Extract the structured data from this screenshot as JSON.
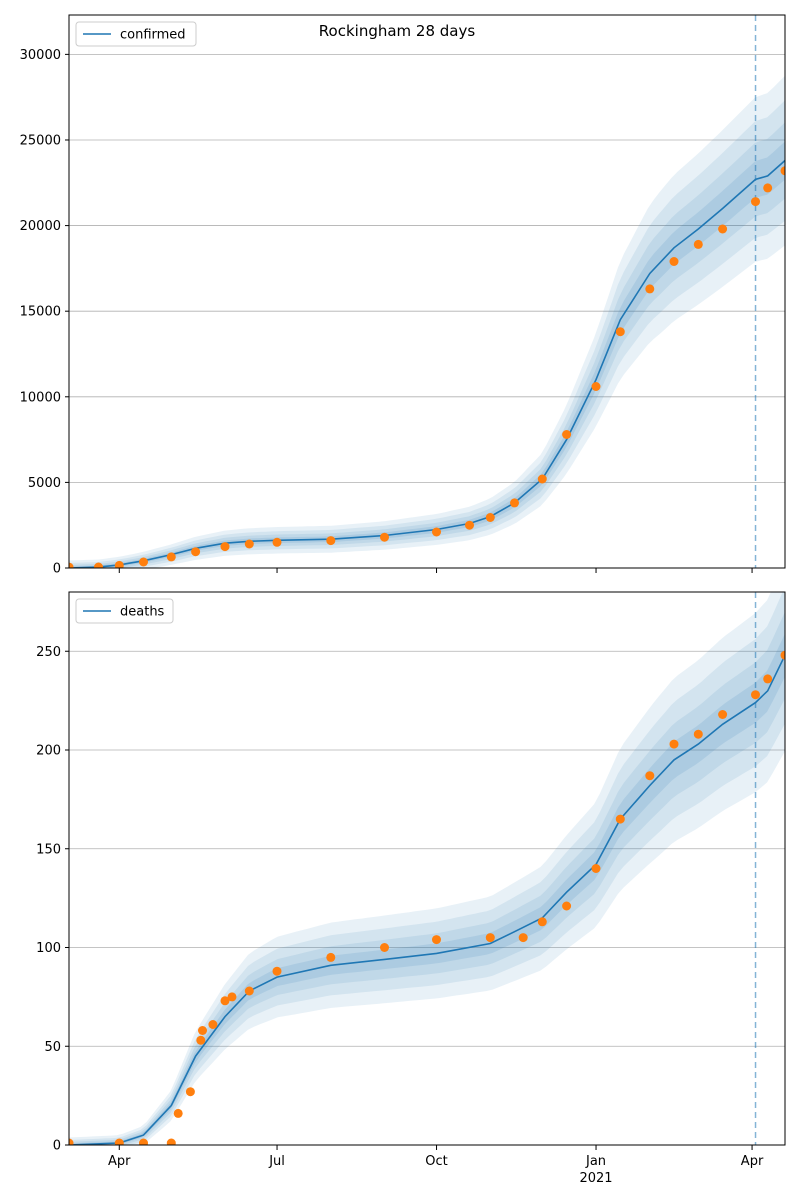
{
  "chart_data": [
    {
      "type": "line",
      "title": "Rockingham 28 days",
      "xlabel": "",
      "ylabel": "",
      "xlim": [
        "2020-03-03",
        "2021-04-20"
      ],
      "ylim": [
        0,
        32300
      ],
      "yticks": [
        0,
        5000,
        10000,
        15000,
        20000,
        25000,
        30000
      ],
      "xticks": [
        {
          "date": "2020-04-01",
          "label": "Apr",
          "sublabel": ""
        },
        {
          "date": "2020-07-01",
          "label": "Jul",
          "sublabel": ""
        },
        {
          "date": "2020-10-01",
          "label": "Oct",
          "sublabel": ""
        },
        {
          "date": "2021-01-01",
          "label": "Jan",
          "sublabel": "2021"
        },
        {
          "date": "2021-04-01",
          "label": "Apr",
          "sublabel": ""
        }
      ],
      "grid": "horizontal",
      "legend_position": "top-left",
      "forecast_start": "2021-04-03",
      "series": [
        {
          "name": "confirmed",
          "kind": "model-line",
          "color": "#1f77b4",
          "points": [
            [
              "2020-03-03",
              0
            ],
            [
              "2020-03-20",
              50
            ],
            [
              "2020-04-01",
              180
            ],
            [
              "2020-04-15",
              420
            ],
            [
              "2020-05-01",
              780
            ],
            [
              "2020-05-15",
              1150
            ],
            [
              "2020-06-01",
              1450
            ],
            [
              "2020-06-15",
              1560
            ],
            [
              "2020-07-01",
              1620
            ],
            [
              "2020-08-01",
              1680
            ],
            [
              "2020-09-01",
              1900
            ],
            [
              "2020-10-01",
              2250
            ],
            [
              "2020-10-20",
              2600
            ],
            [
              "2020-11-01",
              3000
            ],
            [
              "2020-11-15",
              3800
            ],
            [
              "2020-12-01",
              5200
            ],
            [
              "2020-12-15",
              7500
            ],
            [
              "2021-01-01",
              11000
            ],
            [
              "2021-01-15",
              14500
            ],
            [
              "2021-02-01",
              17200
            ],
            [
              "2021-02-15",
              18700
            ],
            [
              "2021-03-01",
              19800
            ],
            [
              "2021-03-15",
              21000
            ],
            [
              "2021-04-03",
              22700
            ],
            [
              "2021-04-10",
              22900
            ],
            [
              "2021-04-20",
              23800
            ]
          ]
        },
        {
          "name": "",
          "kind": "observed-dots",
          "color": "#ff7f0e",
          "points": [
            [
              "2020-03-03",
              50
            ],
            [
              "2020-03-20",
              60
            ],
            [
              "2020-04-01",
              150
            ],
            [
              "2020-04-15",
              350
            ],
            [
              "2020-05-01",
              650
            ],
            [
              "2020-05-15",
              950
            ],
            [
              "2020-06-01",
              1250
            ],
            [
              "2020-06-15",
              1400
            ],
            [
              "2020-07-01",
              1500
            ],
            [
              "2020-08-01",
              1600
            ],
            [
              "2020-09-01",
              1800
            ],
            [
              "2020-10-01",
              2100
            ],
            [
              "2020-10-20",
              2500
            ],
            [
              "2020-11-01",
              2950
            ],
            [
              "2020-11-15",
              3800
            ],
            [
              "2020-12-01",
              5200
            ],
            [
              "2020-12-15",
              7800
            ],
            [
              "2021-01-01",
              10600
            ],
            [
              "2021-01-15",
              13800
            ],
            [
              "2021-02-01",
              16300
            ],
            [
              "2021-02-15",
              17900
            ],
            [
              "2021-03-01",
              18900
            ],
            [
              "2021-03-15",
              19800
            ],
            [
              "2021-04-03",
              21400
            ],
            [
              "2021-04-10",
              22200
            ],
            [
              "2021-04-20",
              23200
            ]
          ]
        }
      ]
    },
    {
      "type": "line",
      "title": "",
      "xlabel": "",
      "ylabel": "",
      "xlim": [
        "2020-03-03",
        "2021-04-20"
      ],
      "ylim": [
        0,
        280
      ],
      "yticks": [
        0,
        50,
        100,
        150,
        200,
        250
      ],
      "xticks": [
        {
          "date": "2020-04-01",
          "label": "Apr",
          "sublabel": ""
        },
        {
          "date": "2020-07-01",
          "label": "Jul",
          "sublabel": ""
        },
        {
          "date": "2020-10-01",
          "label": "Oct",
          "sublabel": ""
        },
        {
          "date": "2021-01-01",
          "label": "Jan",
          "sublabel": "2021"
        },
        {
          "date": "2021-04-01",
          "label": "Apr",
          "sublabel": ""
        }
      ],
      "grid": "horizontal",
      "legend_position": "top-left",
      "forecast_start": "2021-04-03",
      "series": [
        {
          "name": "deaths",
          "kind": "model-line",
          "color": "#1f77b4",
          "points": [
            [
              "2020-03-03",
              0
            ],
            [
              "2020-04-01",
              1
            ],
            [
              "2020-04-15",
              5
            ],
            [
              "2020-05-01",
              20
            ],
            [
              "2020-05-15",
              45
            ],
            [
              "2020-06-01",
              65
            ],
            [
              "2020-06-15",
              78
            ],
            [
              "2020-07-01",
              85
            ],
            [
              "2020-08-01",
              91
            ],
            [
              "2020-09-01",
              94
            ],
            [
              "2020-10-01",
              97
            ],
            [
              "2020-11-01",
              102
            ],
            [
              "2020-11-15",
              108
            ],
            [
              "2020-12-01",
              115
            ],
            [
              "2020-12-15",
              128
            ],
            [
              "2021-01-01",
              142
            ],
            [
              "2021-01-15",
              165
            ],
            [
              "2021-02-01",
              182
            ],
            [
              "2021-02-15",
              195
            ],
            [
              "2021-03-01",
              203
            ],
            [
              "2021-03-15",
              213
            ],
            [
              "2021-04-03",
              224
            ],
            [
              "2021-04-10",
              230
            ],
            [
              "2021-04-20",
              248
            ]
          ]
        },
        {
          "name": "",
          "kind": "observed-dots",
          "color": "#ff7f0e",
          "points": [
            [
              "2020-03-03",
              1
            ],
            [
              "2020-04-01",
              1
            ],
            [
              "2020-04-15",
              1
            ],
            [
              "2020-05-01",
              1
            ],
            [
              "2020-05-05",
              16
            ],
            [
              "2020-05-12",
              27
            ],
            [
              "2020-05-18",
              53
            ],
            [
              "2020-05-19",
              58
            ],
            [
              "2020-05-25",
              61
            ],
            [
              "2020-06-01",
              73
            ],
            [
              "2020-06-05",
              75
            ],
            [
              "2020-06-15",
              78
            ],
            [
              "2020-07-01",
              88
            ],
            [
              "2020-08-01",
              95
            ],
            [
              "2020-09-01",
              100
            ],
            [
              "2020-10-01",
              104
            ],
            [
              "2020-11-01",
              105
            ],
            [
              "2020-11-20",
              105
            ],
            [
              "2020-12-01",
              113
            ],
            [
              "2020-12-15",
              121
            ],
            [
              "2021-01-01",
              140
            ],
            [
              "2021-01-15",
              165
            ],
            [
              "2021-02-01",
              187
            ],
            [
              "2021-02-15",
              203
            ],
            [
              "2021-03-01",
              208
            ],
            [
              "2021-03-15",
              218
            ],
            [
              "2021-04-03",
              228
            ],
            [
              "2021-04-10",
              236
            ],
            [
              "2021-04-20",
              248
            ]
          ]
        }
      ]
    }
  ]
}
